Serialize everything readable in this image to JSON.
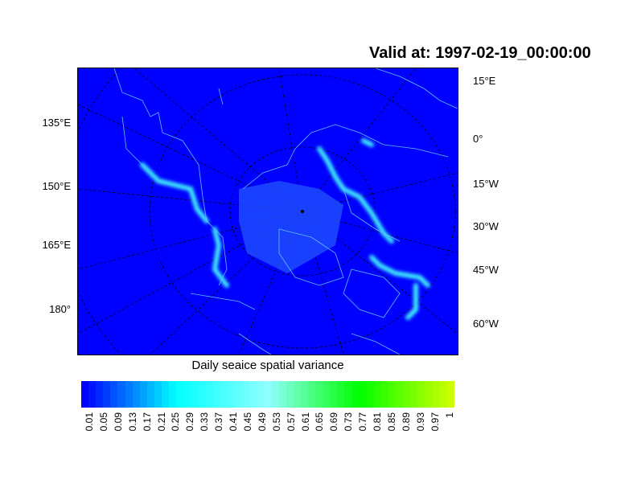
{
  "title": "Valid at: 1997-02-19_00:00:00",
  "left_labels": [
    "135°E",
    "150°E",
    "165°E",
    "180°"
  ],
  "right_labels": [
    "15°E",
    "0°",
    "15°W",
    "30°W",
    "45°W",
    "60°W"
  ],
  "colorbar": {
    "title": "Daily seaice spatial variance",
    "labels": [
      "0.01",
      "0.05",
      "0.09",
      "0.13",
      "0.17",
      "0.21",
      "0.25",
      "0.29",
      "0.33",
      "0.37",
      "0.41",
      "0.45",
      "0.49",
      "0.53",
      "0.57",
      "0.61",
      "0.65",
      "0.69",
      "0.73",
      "0.77",
      "0.81",
      "0.85",
      "0.89",
      "0.93",
      "0.97",
      "1"
    ],
    "color_stops": [
      [
        "0",
        "#0000ff"
      ],
      [
        "0.25",
        "#00ffff"
      ],
      [
        "0.5",
        "#90ffff"
      ],
      [
        "0.75",
        "#00ff00"
      ],
      [
        "1",
        "#ccff00"
      ]
    ]
  },
  "colors": {
    "ocean": "#0000ff",
    "coastline": "#60c0ff",
    "ice_edge": "#40f0ff"
  }
}
